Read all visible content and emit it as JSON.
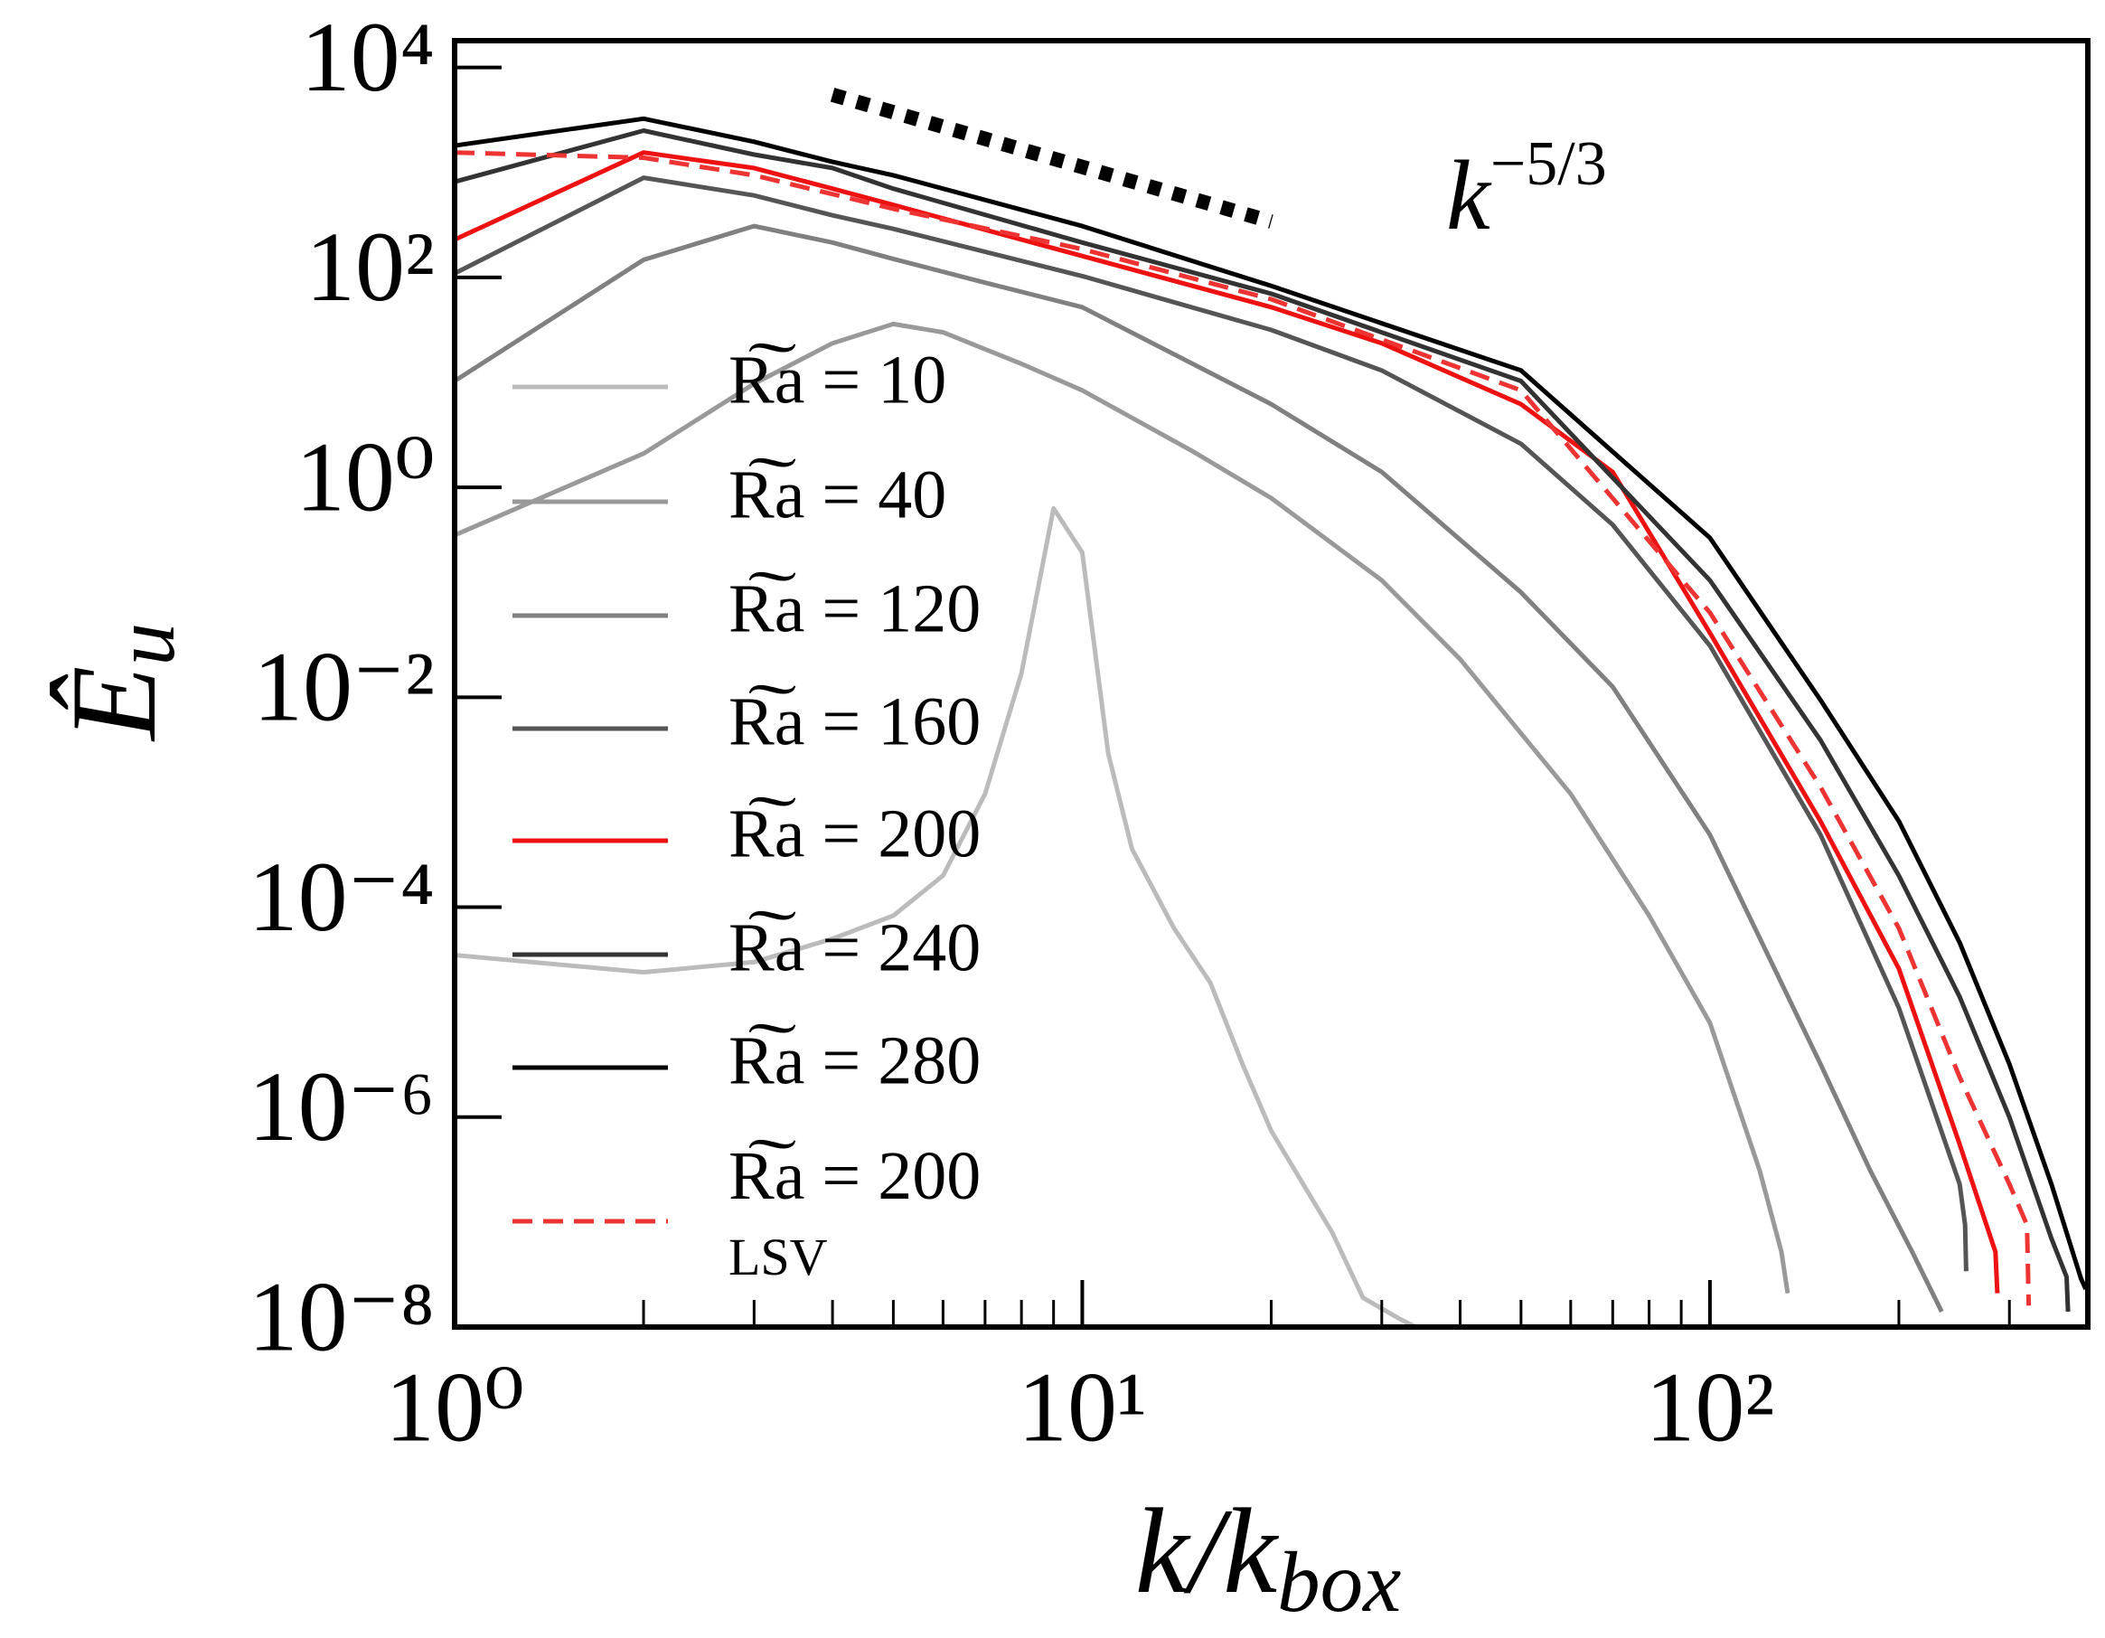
{
  "chart_data": {
    "type": "line",
    "xlabel": "k/kbox",
    "ylabel": "Êu",
    "xscale": "log",
    "yscale": "log",
    "xlim": [
      1,
      400
    ],
    "ylim": [
      1e-08,
      18000
    ],
    "xticks": [
      {
        "value": 1,
        "label": "10⁰"
      },
      {
        "value": 10,
        "label": "10¹"
      },
      {
        "value": 100,
        "label": "10²"
      }
    ],
    "xminor": [
      2,
      3,
      4,
      5,
      6,
      7,
      8,
      9,
      20,
      30,
      40,
      50,
      60,
      70,
      80,
      90,
      200,
      300
    ],
    "yticks": [
      {
        "value": 1e-08,
        "label": "10⁻⁸"
      },
      {
        "value": 1e-06,
        "label": "10⁻⁶"
      },
      {
        "value": 0.0001,
        "label": "10⁻⁴"
      },
      {
        "value": 0.01,
        "label": "10⁻²"
      },
      {
        "value": 1,
        "label": "10⁰"
      },
      {
        "value": 100,
        "label": "10²"
      },
      {
        "value": 10000,
        "label": "10⁴"
      }
    ],
    "reference_line": {
      "x": [
        4,
        20
      ],
      "values": [
        5500,
        340
      ],
      "color": "#000000",
      "label": "k−5/3"
    },
    "series": [
      {
        "name": "R͠a = 10",
        "color": "#bbbbbb",
        "dashed": false,
        "x": [
          1,
          2,
          3,
          4,
          5,
          6,
          7,
          8,
          9,
          10,
          11,
          12,
          14,
          16,
          18,
          20,
          25,
          28,
          32,
          34
        ],
        "values": [
          3.5e-05,
          2.4e-05,
          3e-05,
          5e-05,
          8.3e-05,
          0.0002,
          0.0012,
          0.017,
          0.63,
          0.24,
          0.0029,
          0.00036,
          6.3e-05,
          1.9e-05,
          3.2e-06,
          7.4e-07,
          8e-08,
          1.9e-08,
          1.2e-08,
          1e-08
        ]
      },
      {
        "name": "R͠a = 40",
        "color": "#999999",
        "dashed": false,
        "x": [
          1,
          2,
          3,
          4,
          5,
          6,
          8,
          10,
          15,
          20,
          30,
          40,
          60,
          80,
          100,
          120,
          130,
          133
        ],
        "values": [
          0.35,
          2.1,
          9.7,
          23.6,
          36,
          30,
          15,
          8.4,
          2.2,
          0.79,
          0.13,
          0.023,
          0.0012,
          8.3e-05,
          7.9e-06,
          3.1e-07,
          5.2e-08,
          2.1e-08
        ]
      },
      {
        "name": "R͠a = 120",
        "color": "#808080",
        "dashed": false,
        "x": [
          1,
          2,
          3,
          4,
          5,
          7,
          10,
          20,
          30,
          50,
          70,
          100,
          150,
          180,
          210,
          234
        ],
        "values": [
          10.3,
          147,
          308,
          215,
          150,
          89,
          52,
          6.2,
          1.4,
          0.1,
          0.0126,
          0.00049,
          3.2e-06,
          3.1e-07,
          5.2e-08,
          1.4e-08
        ]
      },
      {
        "name": "R͠a = 160",
        "color": "#555555",
        "dashed": false,
        "x": [
          1,
          2,
          3,
          4,
          5,
          10,
          20,
          30,
          50,
          70,
          100,
          150,
          200,
          250,
          255,
          256
        ],
        "values": [
          109,
          890,
          604,
          390,
          290,
          103,
          31.6,
          13,
          2.6,
          0.44,
          0.031,
          0.00049,
          1.1e-05,
          2.3e-07,
          9.4e-08,
          3.4e-08
        ]
      },
      {
        "name": "R͠a = 200",
        "color": "#ee1111",
        "dashed": false,
        "x": [
          1,
          2,
          3,
          4,
          5,
          10,
          20,
          30,
          50,
          70,
          100,
          150,
          200,
          250,
          285,
          287
        ],
        "values": [
          229,
          1550,
          1100,
          700,
          490,
          160,
          52,
          23.6,
          6.2,
          1.4,
          0.041,
          0.00066,
          2.6e-05,
          5.5e-07,
          5.2e-08,
          2.1e-08
        ]
      },
      {
        "name": "R͠a = 240",
        "color": "#333333",
        "dashed": false,
        "x": [
          1,
          2,
          3,
          4,
          5,
          10,
          20,
          50,
          100,
          150,
          200,
          250,
          300,
          350,
          370,
          372
        ],
        "values": [
          815,
          2500,
          1480,
          1100,
          700,
          215,
          70,
          10.3,
          0.13,
          0.0039,
          0.0002,
          1.4e-05,
          1e-06,
          7e-08,
          3e-08,
          1.4e-08
        ]
      },
      {
        "name": "R͠a = 280",
        "color": "#000000",
        "dashed": false,
        "x": [
          1,
          2,
          3,
          4,
          5,
          10,
          20,
          50,
          100,
          150,
          200,
          250,
          300,
          350,
          390,
          397
        ],
        "values": [
          1800,
          3250,
          1960,
          1260,
          940,
          308,
          83,
          13,
          0.33,
          0.0094,
          0.00066,
          4.6e-05,
          3.2e-06,
          2.3e-07,
          2.9e-08,
          2.3e-08
        ]
      },
      {
        "name": "R͠a = 200\nLSV",
        "color": "#ee3333",
        "dashed": true,
        "x": [
          1,
          2,
          3,
          5,
          10,
          20,
          50,
          100,
          150,
          200,
          250,
          300,
          320,
          322
        ],
        "values": [
          1550,
          1380,
          940,
          450,
          186,
          62,
          8.4,
          0.064,
          0.0014,
          6.3e-05,
          2.4e-06,
          2.3e-07,
          9.4e-08,
          1.6e-08
        ]
      }
    ]
  }
}
